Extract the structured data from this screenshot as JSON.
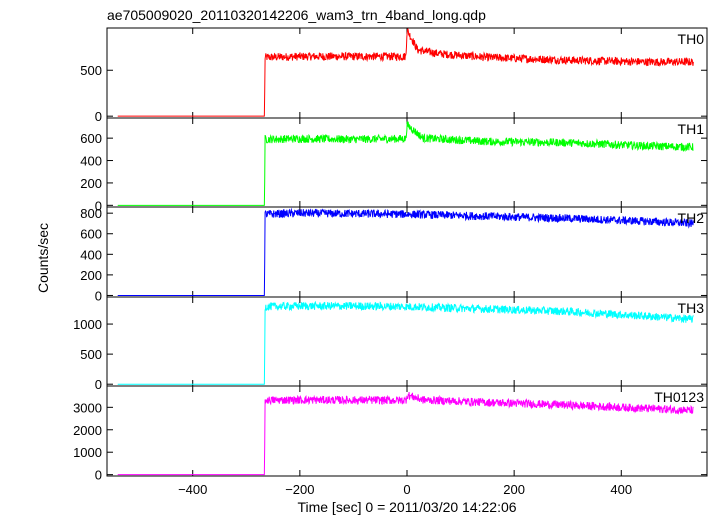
{
  "title": "ae705009020_20110320142206_wam3_trn_4band_long.qdp",
  "ylabel": "Counts/sec",
  "xlabel": "Time [sec] 0 = 2011/03/20 14:22:06",
  "chart_data": {
    "type": "line",
    "title": "ae705009020_20110320142206_wam3_trn_4band_long.qdp",
    "xlabel": "Time [sec] 0 = 2011/03/20 14:22:06",
    "ylabel": "Counts/sec",
    "xlim": [
      -560,
      560
    ],
    "xticks": [
      -400,
      -200,
      0,
      200,
      400
    ],
    "grid": false,
    "panels": [
      {
        "name": "TH0",
        "color": "#ff0000",
        "ylim": [
          -20,
          960
        ],
        "yticks": [
          0,
          500
        ],
        "points": [
          [
            -540,
            0
          ],
          [
            -270,
            0
          ],
          [
            -266,
            0
          ],
          [
            -265,
            640
          ],
          [
            -200,
            650
          ],
          [
            -100,
            650
          ],
          [
            -2,
            650
          ],
          [
            0,
            940
          ],
          [
            20,
            720
          ],
          [
            60,
            680
          ],
          [
            150,
            640
          ],
          [
            300,
            610
          ],
          [
            450,
            590
          ],
          [
            535,
            590
          ]
        ]
      },
      {
        "name": "TH1",
        "color": "#00ff00",
        "ylim": [
          -15,
          780
        ],
        "yticks": [
          0,
          200,
          400,
          600
        ],
        "points": [
          [
            -540,
            0
          ],
          [
            -270,
            0
          ],
          [
            -266,
            0
          ],
          [
            -265,
            590
          ],
          [
            -200,
            595
          ],
          [
            -100,
            590
          ],
          [
            -2,
            595
          ],
          [
            0,
            720
          ],
          [
            30,
            600
          ],
          [
            150,
            570
          ],
          [
            300,
            560
          ],
          [
            450,
            530
          ],
          [
            535,
            520
          ]
        ]
      },
      {
        "name": "TH2",
        "color": "#0000ff",
        "ylim": [
          -15,
          860
        ],
        "yticks": [
          0,
          200,
          400,
          600,
          800
        ],
        "points": [
          [
            -540,
            0
          ],
          [
            -270,
            0
          ],
          [
            -266,
            0
          ],
          [
            -265,
            790
          ],
          [
            -200,
            800
          ],
          [
            -100,
            795
          ],
          [
            0,
            790
          ],
          [
            150,
            770
          ],
          [
            300,
            750
          ],
          [
            450,
            720
          ],
          [
            535,
            700
          ]
        ]
      },
      {
        "name": "TH3",
        "color": "#00ffff",
        "ylim": [
          -30,
          1450
        ],
        "yticks": [
          0,
          500,
          1000
        ],
        "points": [
          [
            -540,
            0
          ],
          [
            -270,
            0
          ],
          [
            -266,
            0
          ],
          [
            -265,
            1290
          ],
          [
            -200,
            1300
          ],
          [
            -100,
            1300
          ],
          [
            0,
            1290
          ],
          [
            150,
            1250
          ],
          [
            300,
            1210
          ],
          [
            450,
            1130
          ],
          [
            535,
            1080
          ]
        ]
      },
      {
        "name": "TH0123",
        "color": "#ff00ff",
        "ylim": [
          -60,
          3950
        ],
        "yticks": [
          0,
          1000,
          2000,
          3000
        ],
        "points": [
          [
            -540,
            0
          ],
          [
            -270,
            0
          ],
          [
            -266,
            0
          ],
          [
            -265,
            3320
          ],
          [
            -200,
            3330
          ],
          [
            -100,
            3320
          ],
          [
            -2,
            3310
          ],
          [
            0,
            3550
          ],
          [
            30,
            3330
          ],
          [
            150,
            3220
          ],
          [
            300,
            3100
          ],
          [
            450,
            2950
          ],
          [
            535,
            2860
          ]
        ]
      }
    ]
  }
}
